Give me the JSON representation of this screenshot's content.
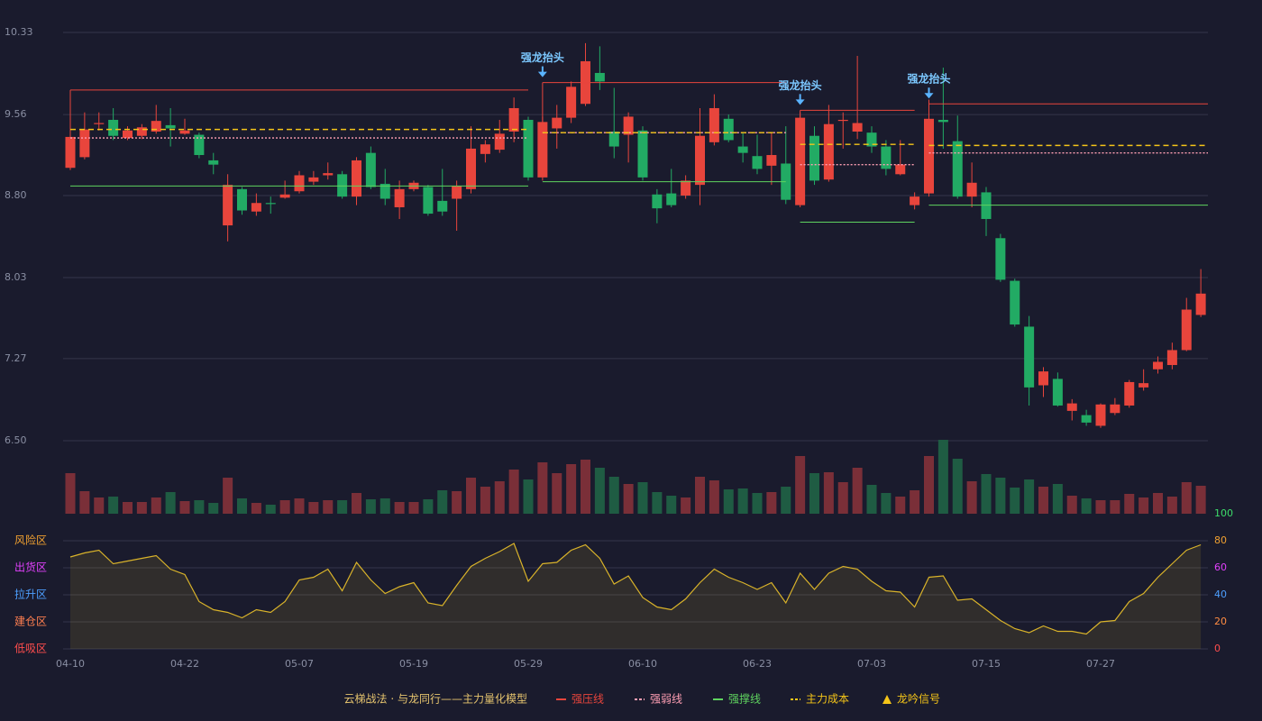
{
  "chart_data": {
    "type": "candlestick",
    "title": "云梯战法 · 与龙同行——主力量化模型",
    "categories": [
      "04-10",
      null,
      null,
      null,
      null,
      null,
      null,
      null,
      "04-22",
      null,
      null,
      null,
      null,
      null,
      null,
      null,
      "05-07",
      null,
      null,
      null,
      null,
      null,
      null,
      null,
      "05-19",
      null,
      null,
      null,
      null,
      null,
      null,
      null,
      "05-29",
      null,
      null,
      null,
      null,
      null,
      null,
      null,
      "06-10",
      null,
      null,
      null,
      null,
      null,
      null,
      null,
      "06-23",
      null,
      null,
      null,
      null,
      null,
      null,
      null,
      "07-03",
      null,
      null,
      null,
      null,
      null,
      null,
      null,
      "07-15",
      null,
      null,
      null,
      null,
      null,
      null,
      null,
      "07-27",
      null,
      null,
      null,
      null,
      null,
      null,
      null
    ],
    "open": [
      9.06,
      9.16,
      9.47,
      9.51,
      9.34,
      9.36,
      9.4,
      9.46,
      9.38,
      9.37,
      9.13,
      8.52,
      8.86,
      8.65,
      8.73,
      8.78,
      8.84,
      8.93,
      8.99,
      9.0,
      8.79,
      9.2,
      8.91,
      8.69,
      8.86,
      8.88,
      8.75,
      8.77,
      8.86,
      9.19,
      9.23,
      9.4,
      9.51,
      8.97,
      9.43,
      9.53,
      9.66,
      9.95,
      9.4,
      9.37,
      9.41,
      8.81,
      8.82,
      8.8,
      8.9,
      9.3,
      9.52,
      9.26,
      9.17,
      9.08,
      9.1,
      8.71,
      9.36,
      8.95,
      9.5,
      9.4,
      9.39,
      9.26,
      9.0,
      8.71,
      8.82,
      9.51,
      9.31,
      8.79,
      8.83,
      8.4,
      8.0,
      7.57,
      7.02,
      7.08,
      6.78,
      6.74,
      6.64,
      6.76,
      6.83,
      7.0,
      7.17,
      7.21,
      7.35,
      7.68
    ],
    "close": [
      9.35,
      9.42,
      9.48,
      9.36,
      9.41,
      9.44,
      9.5,
      9.43,
      9.41,
      9.18,
      9.09,
      8.9,
      8.66,
      8.73,
      8.72,
      8.81,
      8.99,
      8.97,
      9.01,
      8.79,
      9.13,
      8.88,
      8.77,
      8.86,
      8.92,
      8.63,
      8.65,
      8.89,
      9.24,
      9.28,
      9.38,
      9.62,
      8.97,
      9.49,
      9.53,
      9.82,
      10.06,
      9.87,
      9.26,
      9.54,
      8.97,
      8.68,
      8.71,
      8.94,
      9.36,
      9.62,
      9.32,
      9.2,
      9.05,
      9.18,
      8.76,
      9.53,
      8.94,
      9.47,
      9.51,
      9.48,
      9.26,
      9.05,
      9.09,
      8.79,
      9.52,
      9.49,
      8.79,
      8.92,
      8.58,
      8.01,
      7.59,
      7.0,
      7.15,
      6.83,
      6.85,
      6.67,
      6.84,
      6.84,
      7.05,
      7.04,
      7.24,
      7.35,
      7.73,
      7.88
    ],
    "low": [
      9.04,
      9.14,
      9.41,
      9.32,
      9.32,
      9.33,
      9.38,
      9.26,
      9.37,
      9.15,
      9.0,
      8.37,
      8.62,
      8.61,
      8.63,
      8.77,
      8.82,
      8.9,
      8.95,
      8.77,
      8.71,
      8.86,
      8.71,
      8.58,
      8.84,
      8.61,
      8.61,
      8.47,
      8.82,
      9.11,
      9.2,
      9.3,
      8.94,
      8.94,
      9.24,
      9.48,
      9.64,
      9.79,
      9.15,
      9.11,
      8.94,
      8.54,
      8.69,
      8.77,
      8.71,
      9.27,
      9.3,
      9.11,
      9.0,
      8.9,
      8.72,
      8.69,
      8.9,
      8.93,
      9.24,
      9.33,
      9.2,
      8.99,
      8.99,
      8.67,
      8.79,
      9.24,
      8.77,
      8.69,
      8.42,
      7.99,
      7.57,
      6.83,
      6.91,
      6.82,
      6.69,
      6.64,
      6.62,
      6.74,
      6.81,
      6.97,
      7.13,
      7.17,
      7.34,
      7.66
    ],
    "high": [
      9.37,
      9.58,
      9.58,
      9.62,
      9.45,
      9.47,
      9.65,
      9.62,
      9.52,
      9.39,
      9.2,
      9.0,
      8.88,
      8.82,
      8.79,
      8.94,
      9.03,
      9.03,
      9.11,
      9.03,
      9.16,
      9.26,
      9.05,
      8.94,
      8.94,
      8.9,
      9.05,
      8.94,
      9.45,
      9.32,
      9.51,
      9.72,
      9.54,
      9.54,
      9.65,
      9.87,
      10.23,
      10.2,
      9.81,
      9.58,
      9.45,
      8.86,
      9.05,
      8.99,
      9.62,
      9.75,
      9.56,
      9.39,
      9.37,
      9.39,
      9.45,
      9.58,
      9.45,
      9.65,
      9.58,
      10.11,
      9.45,
      9.32,
      9.32,
      8.83,
      9.7,
      10.0,
      9.55,
      9.11,
      8.88,
      8.44,
      8.02,
      7.67,
      7.19,
      7.14,
      6.89,
      6.79,
      6.85,
      6.9,
      7.07,
      7.17,
      7.29,
      7.42,
      7.84,
      8.11
    ],
    "volume": [
      45,
      25,
      18,
      19,
      13,
      13,
      18,
      24,
      14,
      15,
      12,
      40,
      17,
      12,
      10,
      15,
      17,
      13,
      15,
      15,
      23,
      16,
      17,
      13,
      13,
      16,
      26,
      25,
      40,
      30,
      36,
      49,
      38,
      57,
      45,
      55,
      60,
      51,
      41,
      33,
      35,
      24,
      20,
      18,
      41,
      37,
      27,
      28,
      23,
      24,
      30,
      64,
      45,
      46,
      35,
      51,
      32,
      23,
      19,
      26,
      64,
      82,
      61,
      36,
      44,
      40,
      29,
      38,
      30,
      33,
      20,
      17,
      15,
      15,
      22,
      18,
      23,
      19,
      35,
      31
    ],
    "ylim": [
      6.5,
      10.33
    ],
    "yticks": [
      {
        "value": 6.5,
        "label": "6.50"
      },
      7.27,
      8.03,
      {
        "value": 8.8,
        "label": "8.80"
      },
      9.56,
      10.33
    ],
    "up_color": "#e8453c",
    "down_color": "#22ab64",
    "grid": true,
    "level_starts": [
      0,
      33,
      51,
      60
    ],
    "level_ends": [
      32,
      50,
      59,
      79
    ],
    "levels": [
      {
        "name": "强压线",
        "color": "#e8453c",
        "style": "solid",
        "values": [
          9.79,
          9.86,
          9.6,
          9.66
        ]
      },
      {
        "name": "强弱线",
        "color": "#ff9fb4",
        "style": "dotted",
        "values": [
          9.34,
          9.39,
          9.09,
          9.2
        ]
      },
      {
        "name": "强撑线",
        "color": "#5fd35f",
        "style": "solid",
        "values": [
          8.89,
          8.93,
          8.55,
          8.71
        ]
      },
      {
        "name": "主力成本",
        "color": "#f5c518",
        "style": "dashed",
        "values": [
          9.42,
          9.39,
          9.28,
          9.27
        ]
      }
    ],
    "signals": {
      "indices": [
        33,
        51,
        60
      ],
      "labels": [
        "强龙抬头",
        "强龙抬头",
        "强龙抬头"
      ],
      "color": "#5ab4ff"
    },
    "signal_legend": {
      "name": "龙吟信号",
      "color": "#f5c518"
    },
    "oscillator": {
      "values": [
        68,
        71,
        73,
        63,
        65,
        67,
        69,
        59,
        55,
        35,
        29,
        27,
        23,
        29,
        27,
        35,
        51,
        53,
        59,
        43,
        64,
        51,
        41,
        46,
        49,
        34,
        32,
        47,
        61,
        67,
        72,
        78,
        50,
        63,
        64,
        73,
        77,
        67,
        48,
        54,
        38,
        31,
        29,
        37,
        49,
        59,
        53,
        49,
        44,
        49,
        34,
        56,
        44,
        56,
        61,
        59,
        50,
        43,
        42,
        31,
        53,
        54,
        36,
        37,
        29,
        21,
        15,
        12,
        17,
        13,
        13,
        11,
        20,
        21,
        35,
        41,
        53,
        63,
        73,
        77
      ],
      "color": "#d9b32a",
      "ylim": [
        0,
        100
      ],
      "yticks": [
        0,
        20,
        40,
        60,
        80,
        100
      ],
      "tick_colors": [
        "#ff4d4d",
        "#ff8c42",
        "#4d9fff",
        "#e040fb",
        "#f0a030",
        "#3ddc6a"
      ],
      "zones": [
        {
          "value": 80,
          "label": "风险区"
        },
        {
          "value": 60,
          "label": "出货区"
        },
        {
          "value": 40,
          "label": "拉升区"
        },
        {
          "value": 20,
          "label": "建仓区"
        },
        {
          "value": 0,
          "label": "低吸区"
        }
      ],
      "zone_colors": [
        "#f0a030",
        "#e040fb",
        "#4d9fff",
        "#ff7f50",
        "#ff4d4d"
      ]
    }
  }
}
